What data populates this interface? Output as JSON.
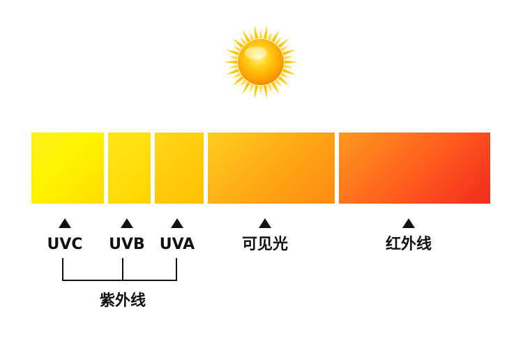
{
  "spectrum": {
    "bands": [
      {
        "id": "uvc",
        "label": "UVC"
      },
      {
        "id": "uvb",
        "label": "UVB"
      },
      {
        "id": "uva",
        "label": "UVA"
      },
      {
        "id": "visible",
        "label": "可见光"
      },
      {
        "id": "infrared",
        "label": "红外线"
      }
    ],
    "ultraviolet_group_label": "紫外线"
  },
  "icons": {
    "sun": "sun-icon",
    "arrow": "arrow-up-icon"
  },
  "colors": {
    "uvc": "#fff200",
    "uvb": "#ffde00",
    "uva": "#ffc800",
    "visible": "#ffa514",
    "infrared": "#f5371e",
    "text": "#111111"
  }
}
